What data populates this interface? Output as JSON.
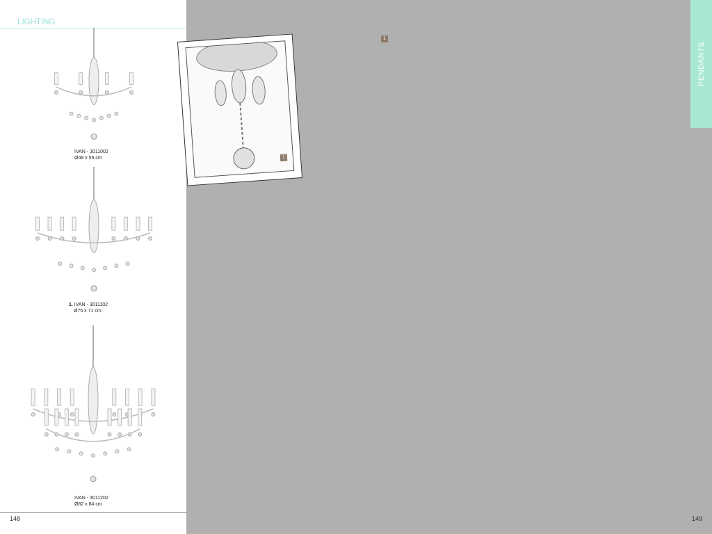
{
  "header": {
    "title": "LIGHTING"
  },
  "products": [
    {
      "name": "IVAN - 3011002",
      "size": "Ø48 x 55 cm"
    },
    {
      "marker": "1.",
      "name": "IVAN - 3011102",
      "size": "Ø75 x 71 cm"
    },
    {
      "name": "IVAN - 3011202",
      "size": "Ø82 x 84 cm"
    }
  ],
  "photo": {
    "badge": "1"
  },
  "page_badge": "1",
  "tab": "PENDANTS",
  "page_numbers": {
    "left": "148",
    "right": "149"
  }
}
